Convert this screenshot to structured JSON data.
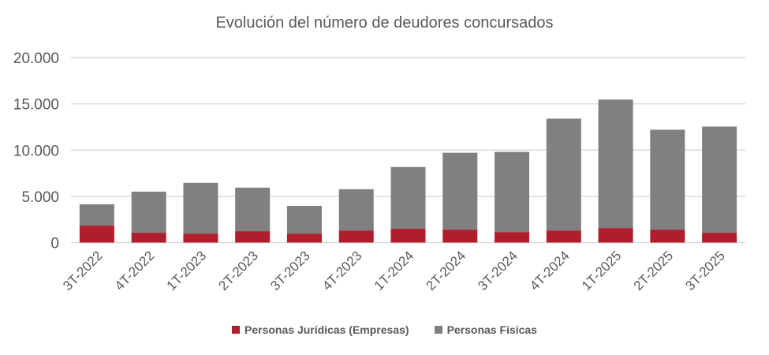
{
  "chart_data": {
    "type": "bar",
    "stacked": true,
    "title": "Evolución del número de deudores concursados",
    "xlabel": "",
    "ylabel": "",
    "ylim": [
      0,
      20000
    ],
    "yticks": [
      "0",
      "5.000",
      "10.000",
      "15.000",
      "20.000"
    ],
    "ytick_values": [
      0,
      5000,
      10000,
      15000,
      20000
    ],
    "grid": true,
    "legend_position": "bottom",
    "categories": [
      "3T-2022",
      "4T-2022",
      "1T-2023",
      "2T-2023",
      "3T-2023",
      "4T-2023",
      "1T-2024",
      "2T-2024",
      "3T-2024",
      "4T-2024",
      "1T-2025",
      "2T-2025",
      "3T-2025"
    ],
    "series": [
      {
        "name": "Personas Jurídicas (Empresas)",
        "color": "#AE1E2D",
        "values": [
          1830,
          1060,
          970,
          1230,
          970,
          1310,
          1490,
          1400,
          1140,
          1310,
          1570,
          1400,
          1060
        ]
      },
      {
        "name": "Personas Físicas",
        "color": "#808080",
        "values": [
          2310,
          4450,
          5490,
          4710,
          3000,
          4460,
          6680,
          8310,
          8660,
          12090,
          13890,
          10800,
          11480
        ]
      }
    ]
  }
}
